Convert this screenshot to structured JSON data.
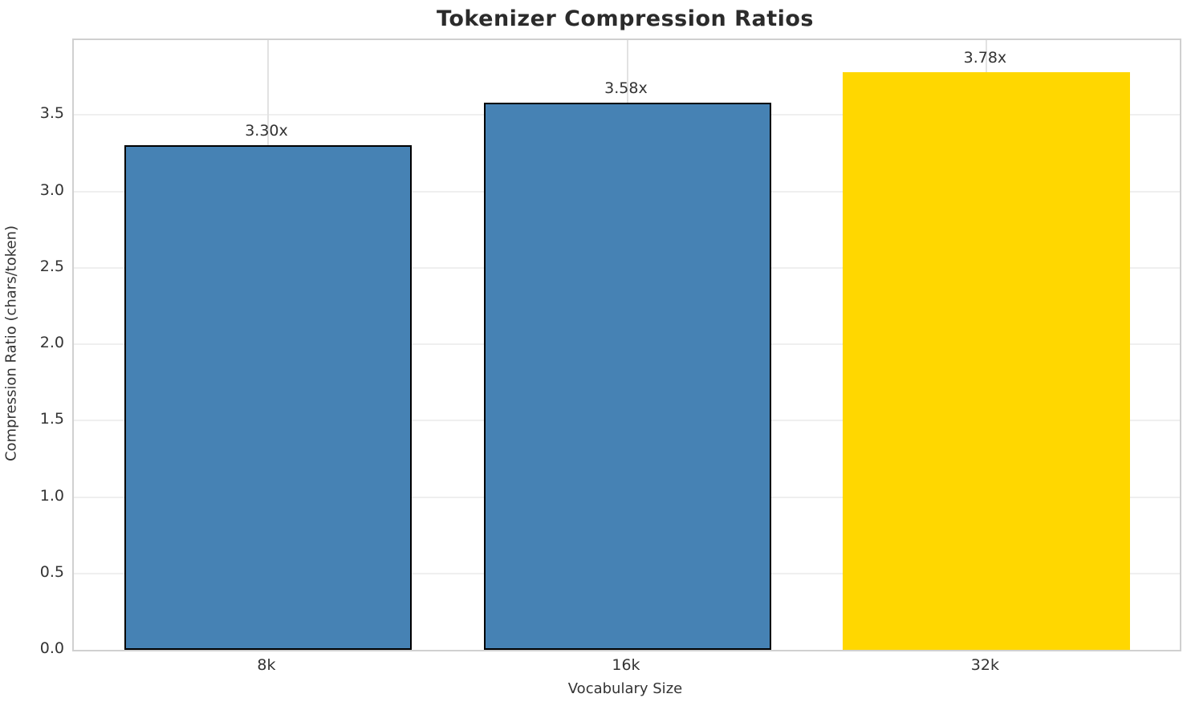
{
  "chart_data": {
    "type": "bar",
    "title": "Tokenizer Compression Ratios",
    "xlabel": "Vocabulary Size",
    "ylabel": "Compression Ratio (chars/token)",
    "categories": [
      "8k",
      "16k",
      "32k"
    ],
    "values": [
      3.3,
      3.58,
      3.78
    ],
    "bar_labels": [
      "3.30x",
      "3.58x",
      "3.78x"
    ],
    "bar_colors": [
      "#4682B4",
      "#4682B4",
      "#FFD700"
    ],
    "bar_edge_colors": [
      "#000000",
      "#000000",
      "none"
    ],
    "ylim": [
      0,
      3.99
    ],
    "yticks": [
      0.0,
      0.5,
      1.0,
      1.5,
      2.0,
      2.5,
      3.0,
      3.5
    ],
    "ytick_labels": [
      "0.0",
      "0.5",
      "1.0",
      "1.5",
      "2.0",
      "2.5",
      "3.0",
      "3.5"
    ],
    "grid": true,
    "legend_position": "none",
    "colors": {
      "highlight": "#FFD700",
      "base": "#4682B4",
      "grid": "#efefef",
      "spine": "#d0d0d0",
      "text": "#333333",
      "title_text": "#2b2b2b"
    }
  }
}
